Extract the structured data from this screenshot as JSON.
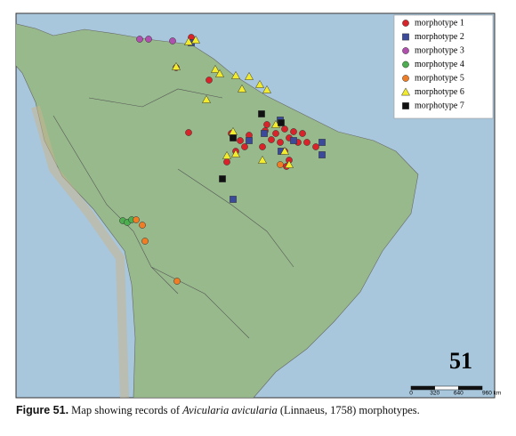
{
  "legend": {
    "items": [
      {
        "label": "morphotype 1",
        "color": "#d8232a",
        "shape": "circle"
      },
      {
        "label": "morphotype 2",
        "color": "#3b4a9a",
        "shape": "square"
      },
      {
        "label": "morphotype 3",
        "color": "#b04fae",
        "shape": "circle"
      },
      {
        "label": "morphotype 4",
        "color": "#4dae4f",
        "shape": "circle"
      },
      {
        "label": "morphotype 5",
        "color": "#ef7d25",
        "shape": "circle"
      },
      {
        "label": "morphotype 6",
        "color": "#f3ec2e",
        "shape": "triangle"
      },
      {
        "label": "morphotype 7",
        "color": "#111111",
        "shape": "square"
      }
    ]
  },
  "figure_number": "51",
  "scale_bar": {
    "labels": [
      "0",
      "320",
      "640",
      "960 km"
    ]
  },
  "caption": {
    "label": "Figure 51.",
    "text": "Map showing records of",
    "species": "Avicularia avicularia",
    "rest": "(Linnaeus, 1758) morphotypes."
  }
}
